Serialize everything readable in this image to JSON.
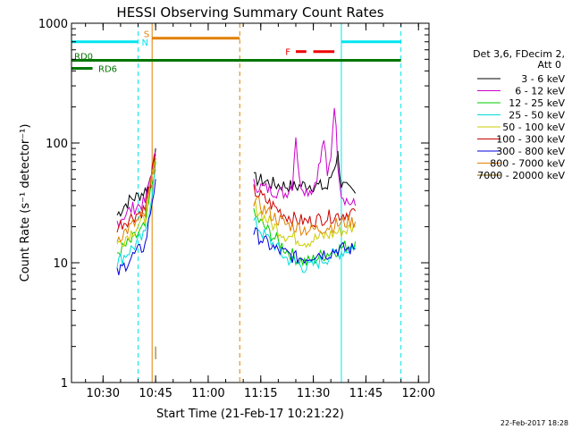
{
  "chart_data": {
    "type": "line",
    "title": "HESSI Observing Summary Count Rates",
    "xlabel": "Start Time (21-Feb-17 10:21:22)",
    "ylabel": "Count Rate (s⁻¹ detector⁻¹)",
    "yscale": "log",
    "ylim": [
      1,
      1000
    ],
    "x_ticks": [
      "10:30",
      "10:45",
      "11:00",
      "11:15",
      "11:30",
      "11:45",
      "12:00"
    ],
    "y_ticks": [
      "1",
      "10",
      "100",
      "1000"
    ],
    "legend_placement": "right",
    "legend_header": [
      "Det 3,6, FDecim 2,",
      "Att 0"
    ],
    "series": [
      {
        "name": "3 - 6 keV",
        "color": "#000000",
        "segments": [
          [
            [
              "10:34",
              25
            ],
            [
              "10:36",
              30
            ],
            [
              "10:38",
              34
            ],
            [
              "10:40",
              36
            ],
            [
              "10:42",
              40
            ],
            [
              "10:43",
              45
            ],
            [
              "10:44",
              60
            ],
            [
              "10:45",
              90
            ]
          ],
          [
            [
              "11:13",
              50
            ],
            [
              "11:16",
              48
            ],
            [
              "11:19",
              45
            ],
            [
              "11:22",
              44
            ],
            [
              "11:25",
              43
            ],
            [
              "11:28",
              45
            ],
            [
              "11:31",
              44
            ],
            [
              "11:34",
              42
            ],
            [
              "11:37",
              80
            ],
            [
              "11:38",
              45
            ],
            [
              "11:40",
              40
            ],
            [
              "11:42",
              38
            ]
          ]
        ]
      },
      {
        "name": "6 - 12 keV",
        "color": "#cc00cc",
        "segments": [
          [
            [
              "10:34",
              22
            ],
            [
              "10:38",
              28
            ],
            [
              "10:42",
              32
            ],
            [
              "10:45",
              85
            ]
          ],
          [
            [
              "11:13",
              45
            ],
            [
              "11:16",
              42
            ],
            [
              "11:19",
              40
            ],
            [
              "11:22",
              38
            ],
            [
              "11:24",
              45
            ],
            [
              "11:25",
              120
            ],
            [
              "11:26",
              48
            ],
            [
              "11:28",
              40
            ],
            [
              "11:30",
              42
            ],
            [
              "11:32",
              70
            ],
            [
              "11:33",
              110
            ],
            [
              "11:34",
              50
            ],
            [
              "11:35",
              80
            ],
            [
              "11:36",
              220
            ],
            [
              "11:37",
              70
            ],
            [
              "11:38",
              38
            ],
            [
              "11:40",
              32
            ],
            [
              "11:42",
              30
            ]
          ]
        ]
      },
      {
        "name": "12 - 25 keV",
        "color": "#00cc00",
        "segments": [
          [
            [
              "10:34",
              12
            ],
            [
              "10:38",
              15
            ],
            [
              "10:42",
              20
            ],
            [
              "10:45",
              70
            ]
          ],
          [
            [
              "11:13",
              25
            ],
            [
              "11:16",
              20
            ],
            [
              "11:19",
              16
            ],
            [
              "11:22",
              13
            ],
            [
              "11:25",
              11
            ],
            [
              "11:28",
              10
            ],
            [
              "11:31",
              11
            ],
            [
              "11:34",
              12
            ],
            [
              "11:37",
              13
            ],
            [
              "11:40",
              14
            ],
            [
              "11:42",
              15
            ]
          ]
        ]
      },
      {
        "name": "25 - 50 keV",
        "color": "#00dddd",
        "segments": [
          [
            [
              "10:34",
              10
            ],
            [
              "10:38",
              13
            ],
            [
              "10:42",
              17
            ],
            [
              "10:45",
              60
            ]
          ],
          [
            [
              "11:13",
              22
            ],
            [
              "11:16",
              17
            ],
            [
              "11:19",
              14
            ],
            [
              "11:22",
              11
            ],
            [
              "11:25",
              10
            ],
            [
              "11:28",
              9
            ],
            [
              "11:31",
              10
            ],
            [
              "11:34",
              11
            ],
            [
              "11:37",
              12
            ],
            [
              "11:40",
              13
            ],
            [
              "11:42",
              14
            ]
          ]
        ]
      },
      {
        "name": "50 - 100 keV",
        "color": "#cccc00",
        "segments": [
          [
            [
              "10:34",
              14
            ],
            [
              "10:38",
              18
            ],
            [
              "10:42",
              23
            ],
            [
              "10:45",
              75
            ]
          ],
          [
            [
              "11:13",
              30
            ],
            [
              "11:16",
              24
            ],
            [
              "11:19",
              20
            ],
            [
              "11:22",
              17
            ],
            [
              "11:25",
              16
            ],
            [
              "11:28",
              15
            ],
            [
              "11:31",
              16
            ],
            [
              "11:34",
              17
            ],
            [
              "11:37",
              18
            ],
            [
              "11:40",
              19
            ],
            [
              "11:42",
              20
            ]
          ]
        ]
      },
      {
        "name": "100 - 300 keV",
        "color": "#cc0000",
        "segments": [
          [
            [
              "10:34",
              20
            ],
            [
              "10:38",
              24
            ],
            [
              "10:42",
              28
            ],
            [
              "10:45",
              80
            ]
          ],
          [
            [
              "11:13",
              40
            ],
            [
              "11:16",
              34
            ],
            [
              "11:19",
              29
            ],
            [
              "11:22",
              25
            ],
            [
              "11:25",
              23
            ],
            [
              "11:28",
              22
            ],
            [
              "11:31",
              23
            ],
            [
              "11:34",
              24
            ],
            [
              "11:37",
              25
            ],
            [
              "11:40",
              26
            ],
            [
              "11:42",
              27
            ]
          ]
        ]
      },
      {
        "name": "300 - 800 keV",
        "color": "#0000dd",
        "segments": [
          [
            [
              "10:34",
              8
            ],
            [
              "10:38",
              11
            ],
            [
              "10:42",
              14
            ],
            [
              "10:45",
              50
            ]
          ],
          [
            [
              "11:13",
              18
            ],
            [
              "11:16",
              15
            ],
            [
              "11:19",
              13
            ],
            [
              "11:22",
              12
            ],
            [
              "11:25",
              11
            ],
            [
              "11:28",
              11
            ],
            [
              "11:31",
              12
            ],
            [
              "11:34",
              12
            ],
            [
              "11:37",
              13
            ],
            [
              "11:40",
              13
            ],
            [
              "11:42",
              13
            ]
          ]
        ]
      },
      {
        "name": "800 - 7000 keV",
        "color": "#e08000",
        "segments": [
          [
            [
              "10:34",
              16
            ],
            [
              "10:38",
              20
            ],
            [
              "10:42",
              25
            ],
            [
              "10:45",
              75
            ]
          ],
          [
            [
              "11:13",
              33
            ],
            [
              "11:16",
              28
            ],
            [
              "11:19",
              24
            ],
            [
              "11:22",
              21
            ],
            [
              "11:25",
              20
            ],
            [
              "11:28",
              19
            ],
            [
              "11:31",
              19
            ],
            [
              "11:34",
              20
            ],
            [
              "11:37",
              21
            ],
            [
              "11:40",
              22
            ],
            [
              "11:42",
              22
            ]
          ]
        ]
      },
      {
        "name": "7000 - 20000 keV",
        "color": "#806000",
        "segments": [
          [
            [
              "10:45",
              1.6
            ],
            [
              "10:45",
              2.0
            ]
          ]
        ]
      }
    ],
    "annotations": {
      "orbit_bars": [
        {
          "label": "",
          "color": "#00e5ee",
          "y": 700,
          "segments": [
            [
              "10:21",
              "10:40"
            ],
            [
              "11:38",
              "11:55"
            ]
          ]
        },
        {
          "label": "S",
          "color": "#e08000",
          "y": 750,
          "segments": [
            [
              "10:44",
              "11:09"
            ]
          ]
        },
        {
          "label": "RD0",
          "color": "#007700",
          "y": 490,
          "segments": [
            [
              "10:21",
              "11:55"
            ]
          ]
        },
        {
          "label": "RD6",
          "color": "#007700",
          "y": 420,
          "segments": [
            [
              "10:21",
              "10:27"
            ]
          ]
        },
        {
          "label": "F",
          "color": "#ee0000",
          "y": 580,
          "segments": [
            [
              "11:25",
              "11:28"
            ],
            [
              "11:30",
              "11:36"
            ]
          ]
        }
      ],
      "n_label": "N",
      "vertical_lines": [
        {
          "x": "10:21",
          "color": "#00e5ee",
          "style": "solid"
        },
        {
          "x": "10:40",
          "color": "#00e5ee",
          "style": "dashed"
        },
        {
          "x": "10:44",
          "color": "#e08000",
          "style": "solid"
        },
        {
          "x": "11:09",
          "color": "#e08000",
          "style": "dashed"
        },
        {
          "x": "11:38",
          "color": "#00e5ee",
          "style": "solid"
        },
        {
          "x": "11:55",
          "color": "#00e5ee",
          "style": "dashed"
        }
      ]
    },
    "grid": false,
    "timestamp": "22-Feb-2017 18:28"
  }
}
